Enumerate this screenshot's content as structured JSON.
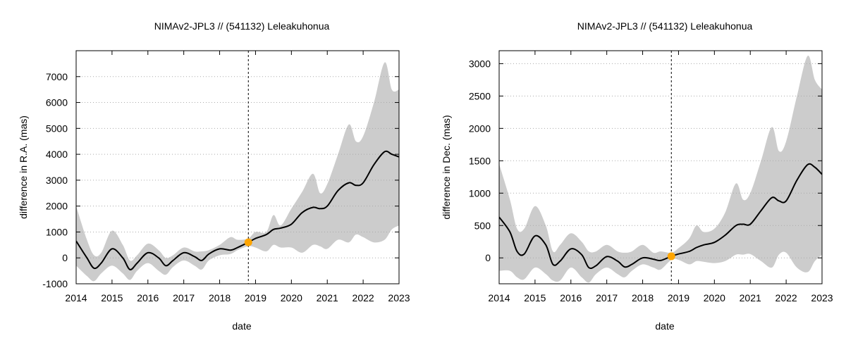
{
  "chart_data": [
    {
      "type": "area",
      "title": "NIMAv2-JPL3 // (541132) Leleakuhonua",
      "xlabel": "date",
      "ylabel": "difference in R.A. (mas)",
      "x_ticks": [
        "2014",
        "2015",
        "2016",
        "2017",
        "2018",
        "2019",
        "2020",
        "2021",
        "2022",
        "2023"
      ],
      "y_ticks": [
        "-1000",
        "0",
        "1000",
        "2000",
        "3000",
        "4000",
        "5000",
        "6000",
        "7000"
      ],
      "xlim": [
        2014,
        2023
      ],
      "ylim": [
        -1000,
        8000
      ],
      "grid": "horizontal dotted",
      "reference_date": 2018.8,
      "marker": {
        "x": 2018.8,
        "y": 600
      },
      "colors": {
        "line": "#000000",
        "band": "#cccccc",
        "marker": "#ffa500"
      },
      "series": [
        {
          "x": [
            2014.0,
            2014.3,
            2014.5,
            2014.7,
            2015.0,
            2015.3,
            2015.5,
            2015.7,
            2016.0,
            2016.3,
            2016.5,
            2016.7,
            2017.0,
            2017.3,
            2017.5,
            2017.7,
            2018.0,
            2018.3,
            2018.5,
            2018.8,
            2019.0,
            2019.3,
            2019.5,
            2019.7,
            2020.0,
            2020.3,
            2020.6,
            2020.8,
            2021.0,
            2021.3,
            2021.6,
            2021.8,
            2022.0,
            2022.3,
            2022.6,
            2022.8,
            2023.0
          ],
          "y": [
            650,
            0,
            -400,
            -200,
            350,
            0,
            -450,
            -200,
            200,
            0,
            -300,
            -100,
            200,
            50,
            -100,
            150,
            350,
            300,
            400,
            600,
            750,
            900,
            1100,
            1150,
            1300,
            1750,
            1950,
            1900,
            2000,
            2600,
            2900,
            2800,
            2900,
            3600,
            4100,
            4000,
            3900
          ]
        }
      ],
      "band_upper": [
        {
          "x": 2014.0,
          "y": 2000
        },
        {
          "x": 2014.3,
          "y": 700
        },
        {
          "x": 2014.5,
          "y": 100
        },
        {
          "x": 2014.7,
          "y": 200
        },
        {
          "x": 2015.0,
          "y": 1050
        },
        {
          "x": 2015.3,
          "y": 500
        },
        {
          "x": 2015.5,
          "y": -100
        },
        {
          "x": 2015.7,
          "y": 100
        },
        {
          "x": 2016.0,
          "y": 550
        },
        {
          "x": 2016.3,
          "y": 300
        },
        {
          "x": 2016.5,
          "y": 0
        },
        {
          "x": 2016.7,
          "y": 100
        },
        {
          "x": 2017.0,
          "y": 400
        },
        {
          "x": 2017.3,
          "y": 250
        },
        {
          "x": 2017.5,
          "y": 250
        },
        {
          "x": 2017.7,
          "y": 300
        },
        {
          "x": 2018.0,
          "y": 500
        },
        {
          "x": 2018.3,
          "y": 800
        },
        {
          "x": 2018.5,
          "y": 700
        },
        {
          "x": 2018.8,
          "y": 750
        },
        {
          "x": 2019.0,
          "y": 1000
        },
        {
          "x": 2019.3,
          "y": 1000
        },
        {
          "x": 2019.5,
          "y": 1650
        },
        {
          "x": 2019.7,
          "y": 1250
        },
        {
          "x": 2020.0,
          "y": 1900
        },
        {
          "x": 2020.3,
          "y": 2550
        },
        {
          "x": 2020.6,
          "y": 3250
        },
        {
          "x": 2020.8,
          "y": 2500
        },
        {
          "x": 2021.0,
          "y": 2850
        },
        {
          "x": 2021.3,
          "y": 4000
        },
        {
          "x": 2021.6,
          "y": 5150
        },
        {
          "x": 2021.8,
          "y": 4500
        },
        {
          "x": 2022.0,
          "y": 4700
        },
        {
          "x": 2022.3,
          "y": 6000
        },
        {
          "x": 2022.6,
          "y": 7550
        },
        {
          "x": 2022.8,
          "y": 6500
        },
        {
          "x": 2023.0,
          "y": 6500
        }
      ],
      "band_lower": [
        {
          "x": 2014.0,
          "y": -300
        },
        {
          "x": 2014.3,
          "y": -700
        },
        {
          "x": 2014.5,
          "y": -900
        },
        {
          "x": 2014.7,
          "y": -600
        },
        {
          "x": 2015.0,
          "y": -300
        },
        {
          "x": 2015.3,
          "y": -600
        },
        {
          "x": 2015.5,
          "y": -850
        },
        {
          "x": 2015.7,
          "y": -500
        },
        {
          "x": 2016.0,
          "y": -200
        },
        {
          "x": 2016.3,
          "y": -500
        },
        {
          "x": 2016.5,
          "y": -650
        },
        {
          "x": 2016.7,
          "y": -350
        },
        {
          "x": 2017.0,
          "y": -100
        },
        {
          "x": 2017.3,
          "y": -300
        },
        {
          "x": 2017.5,
          "y": -450
        },
        {
          "x": 2017.7,
          "y": -100
        },
        {
          "x": 2018.0,
          "y": 100
        },
        {
          "x": 2018.3,
          "y": 150
        },
        {
          "x": 2018.5,
          "y": 300
        },
        {
          "x": 2018.8,
          "y": 450
        },
        {
          "x": 2019.0,
          "y": 400
        },
        {
          "x": 2019.3,
          "y": 250
        },
        {
          "x": 2019.5,
          "y": 500
        },
        {
          "x": 2019.7,
          "y": 400
        },
        {
          "x": 2020.0,
          "y": 400
        },
        {
          "x": 2020.3,
          "y": 200
        },
        {
          "x": 2020.6,
          "y": 500
        },
        {
          "x": 2020.8,
          "y": 450
        },
        {
          "x": 2021.0,
          "y": 350
        },
        {
          "x": 2021.3,
          "y": 700
        },
        {
          "x": 2021.6,
          "y": 600
        },
        {
          "x": 2021.8,
          "y": 900
        },
        {
          "x": 2022.0,
          "y": 800
        },
        {
          "x": 2022.3,
          "y": 600
        },
        {
          "x": 2022.6,
          "y": 700
        },
        {
          "x": 2022.8,
          "y": 1100
        },
        {
          "x": 2023.0,
          "y": 1250
        }
      ]
    },
    {
      "type": "area",
      "title": "NIMAv2-JPL3 // (541132) Leleakuhonua",
      "xlabel": "date",
      "ylabel": "difference in Dec. (mas)",
      "x_ticks": [
        "2014",
        "2015",
        "2016",
        "2017",
        "2018",
        "2019",
        "2020",
        "2021",
        "2022",
        "2023"
      ],
      "y_ticks": [
        "0",
        "500",
        "1000",
        "1500",
        "2000",
        "2500",
        "3000"
      ],
      "xlim": [
        2014,
        2023
      ],
      "ylim": [
        -400,
        3200
      ],
      "grid": "horizontal dotted",
      "reference_date": 2018.8,
      "marker": {
        "x": 2018.8,
        "y": 25
      },
      "colors": {
        "line": "#000000",
        "band": "#cccccc",
        "marker": "#ffa500"
      },
      "series": [
        {
          "x": [
            2014.0,
            2014.3,
            2014.5,
            2014.7,
            2015.0,
            2015.3,
            2015.5,
            2015.7,
            2016.0,
            2016.3,
            2016.5,
            2016.7,
            2017.0,
            2017.3,
            2017.5,
            2017.7,
            2018.0,
            2018.3,
            2018.5,
            2018.8,
            2019.0,
            2019.3,
            2019.5,
            2019.7,
            2020.0,
            2020.3,
            2020.6,
            2020.8,
            2021.0,
            2021.3,
            2021.6,
            2021.8,
            2022.0,
            2022.3,
            2022.6,
            2022.8,
            2023.0
          ],
          "y": [
            630,
            400,
            100,
            60,
            340,
            200,
            -100,
            -50,
            140,
            50,
            -150,
            -120,
            20,
            -50,
            -140,
            -100,
            0,
            -20,
            -40,
            25,
            60,
            100,
            160,
            200,
            240,
            350,
            500,
            520,
            520,
            730,
            930,
            880,
            880,
            1200,
            1440,
            1400,
            1290
          ]
        }
      ],
      "band_upper": [
        {
          "x": 2014.0,
          "y": 1450
        },
        {
          "x": 2014.3,
          "y": 900
        },
        {
          "x": 2014.5,
          "y": 450
        },
        {
          "x": 2014.7,
          "y": 450
        },
        {
          "x": 2015.0,
          "y": 800
        },
        {
          "x": 2015.3,
          "y": 500
        },
        {
          "x": 2015.5,
          "y": 100
        },
        {
          "x": 2015.7,
          "y": 200
        },
        {
          "x": 2016.0,
          "y": 380
        },
        {
          "x": 2016.3,
          "y": 250
        },
        {
          "x": 2016.5,
          "y": 100
        },
        {
          "x": 2016.7,
          "y": 100
        },
        {
          "x": 2017.0,
          "y": 200
        },
        {
          "x": 2017.3,
          "y": 100
        },
        {
          "x": 2017.5,
          "y": 80
        },
        {
          "x": 2017.7,
          "y": 100
        },
        {
          "x": 2018.0,
          "y": 200
        },
        {
          "x": 2018.3,
          "y": 80
        },
        {
          "x": 2018.5,
          "y": 100
        },
        {
          "x": 2018.8,
          "y": 80
        },
        {
          "x": 2019.0,
          "y": 150
        },
        {
          "x": 2019.3,
          "y": 300
        },
        {
          "x": 2019.5,
          "y": 500
        },
        {
          "x": 2019.7,
          "y": 400
        },
        {
          "x": 2020.0,
          "y": 450
        },
        {
          "x": 2020.3,
          "y": 700
        },
        {
          "x": 2020.6,
          "y": 1150
        },
        {
          "x": 2020.8,
          "y": 900
        },
        {
          "x": 2021.0,
          "y": 1000
        },
        {
          "x": 2021.3,
          "y": 1500
        },
        {
          "x": 2021.6,
          "y": 2020
        },
        {
          "x": 2021.8,
          "y": 1650
        },
        {
          "x": 2022.0,
          "y": 1800
        },
        {
          "x": 2022.3,
          "y": 2500
        },
        {
          "x": 2022.6,
          "y": 3120
        },
        {
          "x": 2022.8,
          "y": 2750
        },
        {
          "x": 2023.0,
          "y": 2600
        }
      ],
      "band_lower": [
        {
          "x": 2014.0,
          "y": -200
        },
        {
          "x": 2014.3,
          "y": -200
        },
        {
          "x": 2014.5,
          "y": -300
        },
        {
          "x": 2014.7,
          "y": -330
        },
        {
          "x": 2015.0,
          "y": -150
        },
        {
          "x": 2015.3,
          "y": -250
        },
        {
          "x": 2015.5,
          "y": -350
        },
        {
          "x": 2015.7,
          "y": -350
        },
        {
          "x": 2016.0,
          "y": -150
        },
        {
          "x": 2016.3,
          "y": -300
        },
        {
          "x": 2016.5,
          "y": -380
        },
        {
          "x": 2016.7,
          "y": -250
        },
        {
          "x": 2017.0,
          "y": -150
        },
        {
          "x": 2017.3,
          "y": -250
        },
        {
          "x": 2017.5,
          "y": -300
        },
        {
          "x": 2017.7,
          "y": -200
        },
        {
          "x": 2018.0,
          "y": -100
        },
        {
          "x": 2018.3,
          "y": -150
        },
        {
          "x": 2018.5,
          "y": -180
        },
        {
          "x": 2018.8,
          "y": -30
        },
        {
          "x": 2019.0,
          "y": -30
        },
        {
          "x": 2019.3,
          "y": -100
        },
        {
          "x": 2019.5,
          "y": -50
        },
        {
          "x": 2019.7,
          "y": -60
        },
        {
          "x": 2020.0,
          "y": -80
        },
        {
          "x": 2020.3,
          "y": -50
        },
        {
          "x": 2020.6,
          "y": 50
        },
        {
          "x": 2020.8,
          "y": 50
        },
        {
          "x": 2021.0,
          "y": 60
        },
        {
          "x": 2021.3,
          "y": -50
        },
        {
          "x": 2021.6,
          "y": -150
        },
        {
          "x": 2021.8,
          "y": 50
        },
        {
          "x": 2022.0,
          "y": 80
        },
        {
          "x": 2022.3,
          "y": -150
        },
        {
          "x": 2022.6,
          "y": -220
        },
        {
          "x": 2022.8,
          "y": -50
        },
        {
          "x": 2023.0,
          "y": 50
        }
      ]
    }
  ]
}
